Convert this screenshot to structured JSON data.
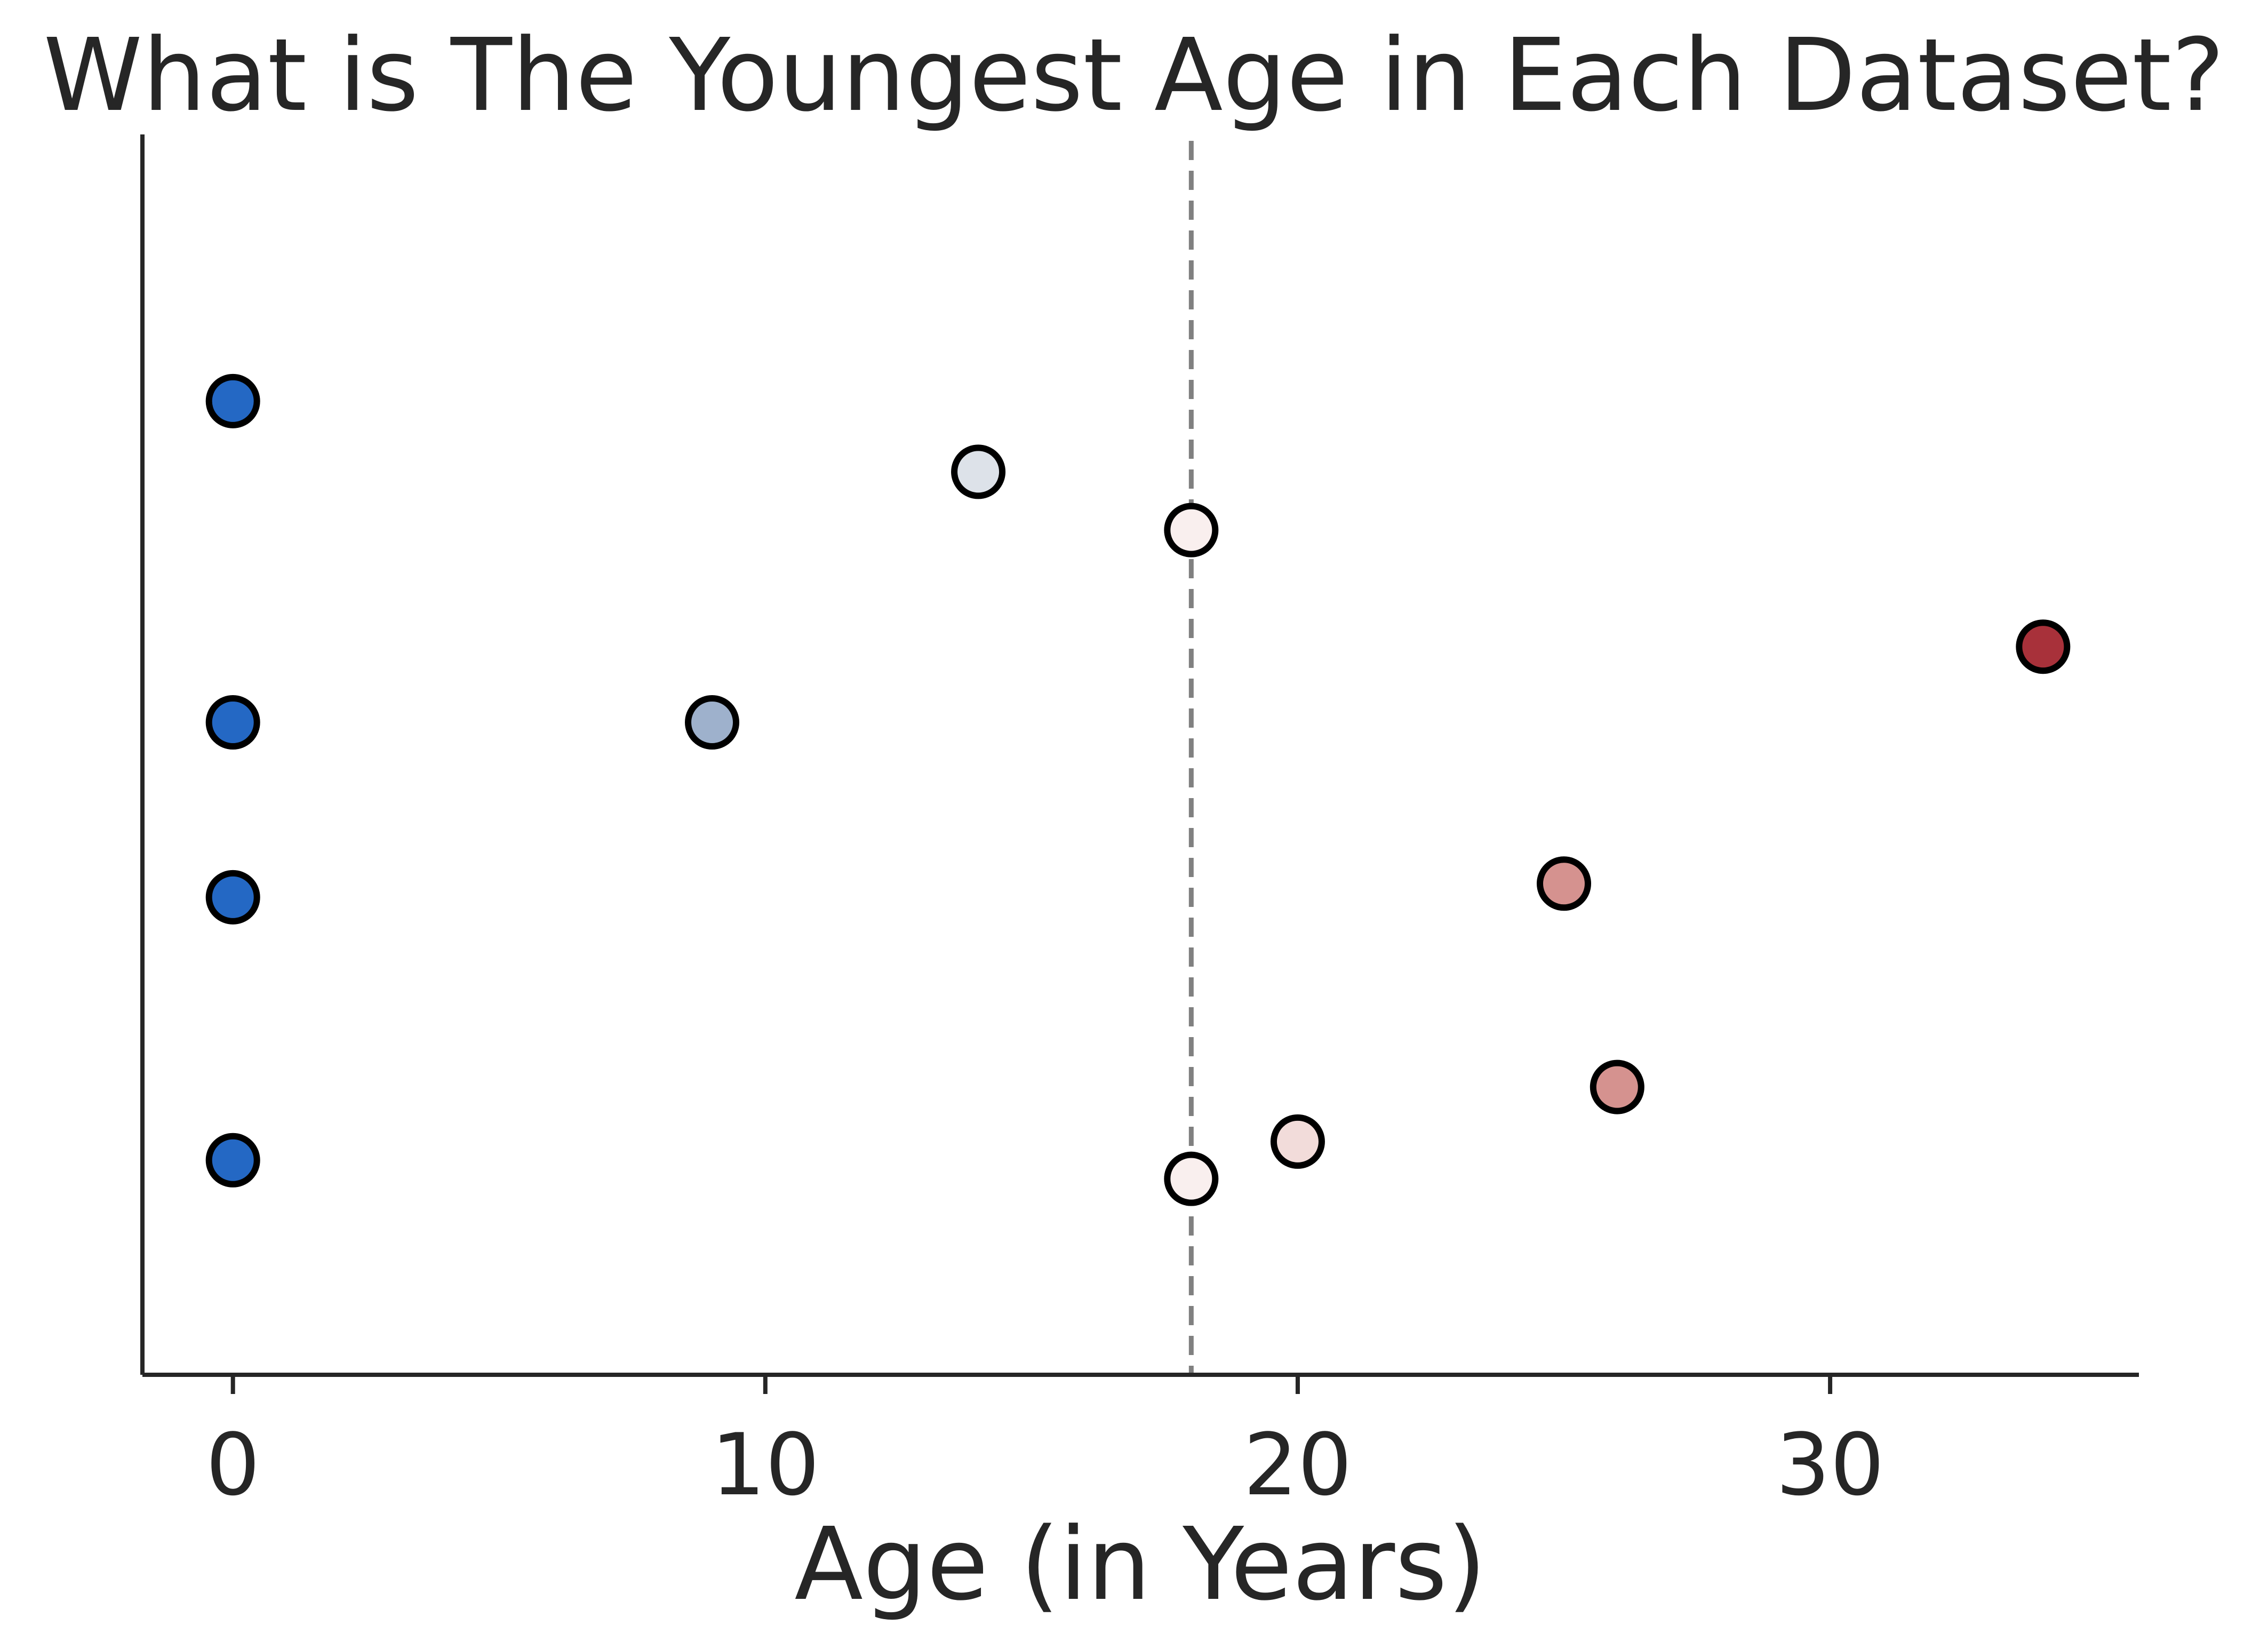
{
  "chart_data": {
    "type": "scatter",
    "title": "What is The Youngest Age in Each Dataset?",
    "xlabel": "Age (in Years)",
    "ylabel": "",
    "xlim": [
      -1.7,
      35.8
    ],
    "ylim": [
      0,
      1
    ],
    "x_ticks": [
      0,
      10,
      20,
      30
    ],
    "y_ticks": [],
    "grid": false,
    "reference_line": {
      "orientation": "vertical",
      "x": 18,
      "style": "dashed",
      "color": "#808080"
    },
    "points": [
      {
        "x": 0,
        "y": 0.785,
        "color": "#2468c4"
      },
      {
        "x": 0,
        "y": 0.526,
        "color": "#2468c4"
      },
      {
        "x": 0,
        "y": 0.385,
        "color": "#2468c4"
      },
      {
        "x": 0,
        "y": 0.173,
        "color": "#2468c4"
      },
      {
        "x": 9,
        "y": 0.526,
        "color": "#9eb1cc"
      },
      {
        "x": 14,
        "y": 0.728,
        "color": "#dde2e9"
      },
      {
        "x": 18,
        "y": 0.681,
        "color": "#f9efee"
      },
      {
        "x": 18,
        "y": 0.158,
        "color": "#f9efee"
      },
      {
        "x": 20,
        "y": 0.188,
        "color": "#f2dcda"
      },
      {
        "x": 25,
        "y": 0.396,
        "color": "#d5928f"
      },
      {
        "x": 26,
        "y": 0.232,
        "color": "#d5928f"
      },
      {
        "x": 34,
        "y": 0.587,
        "color": "#a8313a"
      }
    ]
  }
}
